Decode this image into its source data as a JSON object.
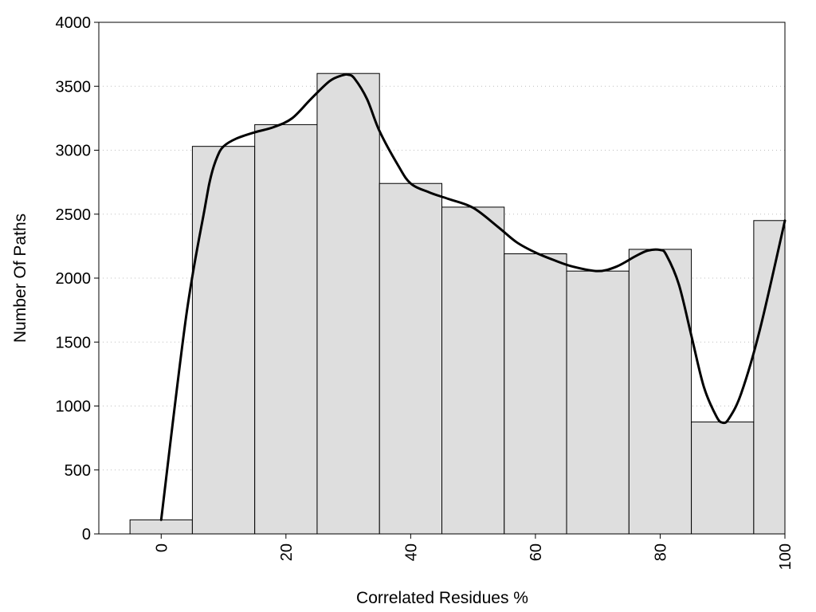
{
  "chart_data": {
    "type": "bar",
    "title": "",
    "xlabel": "Correlated Residues %",
    "ylabel": "Number Of Paths",
    "xlim": [
      -10,
      100
    ],
    "ylim": [
      0,
      4000
    ],
    "yticks": [
      0,
      500,
      1000,
      1500,
      2000,
      2500,
      3000,
      3500,
      4000
    ],
    "xticks": [
      0,
      20,
      40,
      60,
      80,
      100
    ],
    "grid": "horizontal dotted",
    "bin_width": 10,
    "bars": [
      {
        "x": 0,
        "value": 110
      },
      {
        "x": 10,
        "value": 3030
      },
      {
        "x": 20,
        "value": 3200
      },
      {
        "x": 30,
        "value": 3600
      },
      {
        "x": 40,
        "value": 2740
      },
      {
        "x": 50,
        "value": 2555
      },
      {
        "x": 60,
        "value": 2190
      },
      {
        "x": 70,
        "value": 2055
      },
      {
        "x": 80,
        "value": 2225
      },
      {
        "x": 90,
        "value": 875
      },
      {
        "x": 100,
        "value": 2450
      }
    ],
    "curve": {
      "x": [
        0,
        4,
        7,
        8,
        9,
        10,
        12,
        15,
        18,
        21,
        24,
        27,
        29,
        30,
        31,
        33,
        35,
        38,
        40,
        43,
        46,
        50,
        54,
        57,
        60,
        63,
        66,
        70,
        73,
        76,
        78,
        80,
        81,
        83,
        85,
        87,
        89,
        90,
        91,
        93,
        96,
        100
      ],
      "y": [
        110,
        1700,
        2550,
        2800,
        2950,
        3030,
        3090,
        3140,
        3180,
        3250,
        3400,
        3540,
        3585,
        3590,
        3560,
        3400,
        3150,
        2880,
        2740,
        2670,
        2620,
        2550,
        2400,
        2280,
        2200,
        2140,
        2090,
        2055,
        2090,
        2170,
        2215,
        2220,
        2180,
        1950,
        1550,
        1150,
        920,
        870,
        900,
        1100,
        1600,
        2450
      ]
    }
  }
}
